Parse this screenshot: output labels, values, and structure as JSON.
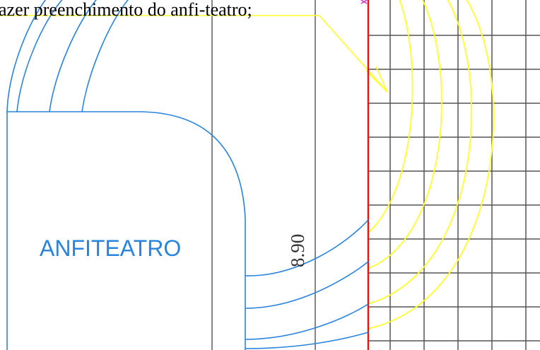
{
  "annotation": {
    "text": "azer preenchimento do anfi-teatro;"
  },
  "room": {
    "label": "ANFITEATRO"
  },
  "dimension": {
    "text": "8.90"
  },
  "colors": {
    "blue": "#2a84de",
    "yellow": "#ffff2e",
    "red": "#e4141a",
    "grid": "#555555",
    "magenta": "#cc33cc"
  }
}
